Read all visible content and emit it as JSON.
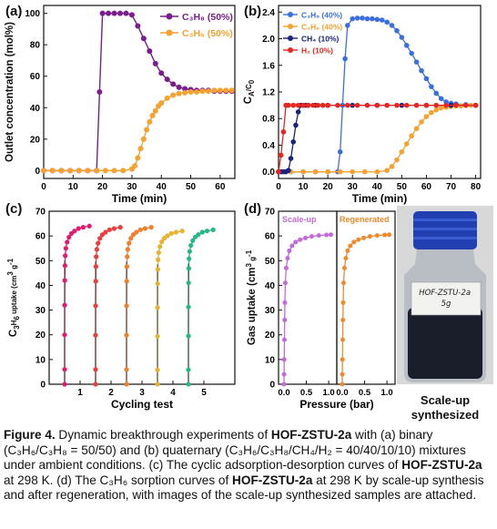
{
  "panels": {
    "a": {
      "label": "(a)"
    },
    "b": {
      "label": "(b)"
    },
    "c": {
      "label": "(c)"
    },
    "d": {
      "label": "(d)"
    }
  },
  "photo": {
    "bottle_label": "HOF-ZSTU-2a\n5g",
    "caption_line1": "Scale-up",
    "caption_line2": "synthesized"
  },
  "caption": {
    "fig": "Figure 4.",
    "t1": " Dynamic breakthrough experiments of ",
    "b1": "HOF-ZSTU-2a",
    "t2": " with (a) binary (C₃H₆/C₃H₈ = 50/50) and (b) quaternary (C₃H₆/C₃H₈/CH₄/H₂ = 40/40/10/10) mixtures under ambient conditions. (c) The cyclic adsorption-desorption curves of ",
    "b2": "HOF-ZSTU-2a",
    "t3": " at 298 K. (d) The C₃H₆ sorption curves of ",
    "b3": "HOF-ZSTU-2a",
    "t4": " at 298 K by scale-up synthesis and after regeneration, with images of the scale-up synthesized samples are attached."
  },
  "chart_data": [
    {
      "id": "a",
      "type": "line",
      "xlabel": "Time (min)",
      "ylabel": "Outlet concentration (mol%)",
      "xlim": [
        0,
        65
      ],
      "ylim": [
        -5,
        105
      ],
      "xticks": [
        0,
        10,
        20,
        30,
        40,
        50,
        60
      ],
      "yticks": [
        0,
        20,
        40,
        60,
        80,
        100
      ],
      "legend": "top-right",
      "series": [
        {
          "name": "C₃H₈ (50%)",
          "color": "#7b1d8e",
          "x": [
            0,
            3,
            6,
            9,
            12,
            15,
            18,
            19,
            20,
            22,
            24,
            26,
            28,
            30,
            32,
            34,
            36,
            38,
            40,
            42,
            44,
            46,
            48,
            50,
            52,
            54,
            56,
            58,
            60,
            62,
            64
          ],
          "y": [
            0,
            0,
            0,
            0,
            0,
            0,
            0,
            50,
            100,
            100,
            100,
            100,
            100,
            99,
            92,
            84,
            76,
            68,
            62,
            58,
            55,
            53,
            52,
            51.5,
            51,
            51,
            51,
            50.5,
            50.5,
            50.5,
            50.5
          ]
        },
        {
          "name": "C₃H₆ (50%)",
          "color": "#f5a231",
          "x": [
            0,
            3,
            6,
            9,
            12,
            15,
            18,
            21,
            24,
            27,
            30,
            31,
            32,
            33,
            34,
            35,
            36,
            37,
            38,
            39,
            40,
            42,
            44,
            46,
            48,
            50,
            52,
            54,
            56,
            58,
            60,
            62,
            64
          ],
          "y": [
            0,
            0,
            0,
            0,
            0,
            0,
            0,
            0,
            0,
            0,
            1,
            3,
            8,
            14,
            20,
            26,
            31,
            35,
            38,
            41,
            43,
            46,
            48,
            49,
            49.5,
            50,
            50,
            50.5,
            50.5,
            51,
            51,
            51,
            51
          ]
        }
      ]
    },
    {
      "id": "b",
      "type": "line",
      "xlabel": "Time (min)",
      "ylabel": "CA/C0",
      "xlim": [
        0,
        82
      ],
      "ylim": [
        -0.1,
        2.5
      ],
      "xticks": [
        0,
        10,
        20,
        30,
        40,
        50,
        60,
        70,
        80
      ],
      "yticks": [
        "0.0",
        "0.4",
        "0.8",
        "1.2",
        "1.6",
        "2.0",
        "2.4"
      ],
      "legend": "top-left",
      "series": [
        {
          "name": "C₃H₆ (40%)",
          "color": "#3b6fe0",
          "x": [
            0,
            5,
            10,
            15,
            20,
            24,
            25,
            26,
            27,
            28,
            30,
            32,
            34,
            36,
            38,
            40,
            42,
            44,
            46,
            48,
            50,
            52,
            54,
            56,
            58,
            60,
            62,
            64,
            66,
            68,
            70,
            72,
            76,
            80
          ],
          "y": [
            0,
            0,
            0,
            0,
            0,
            0,
            0.3,
            1.0,
            1.7,
            2.2,
            2.3,
            2.31,
            2.31,
            2.3,
            2.3,
            2.29,
            2.28,
            2.25,
            2.2,
            2.12,
            2.02,
            1.9,
            1.78,
            1.65,
            1.52,
            1.4,
            1.28,
            1.18,
            1.1,
            1.05,
            1.03,
            1.02,
            1.01,
            1.0
          ]
        },
        {
          "name": "C₃H₈ (40%)",
          "color": "#f5a231",
          "x": [
            0,
            5,
            10,
            15,
            20,
            25,
            30,
            35,
            40,
            44,
            46,
            48,
            50,
            52,
            54,
            56,
            58,
            60,
            62,
            64,
            66,
            68,
            70,
            72,
            74,
            76,
            78,
            80
          ],
          "y": [
            0,
            0,
            0,
            0,
            0,
            0,
            0,
            0,
            0,
            0.02,
            0.08,
            0.18,
            0.3,
            0.42,
            0.54,
            0.65,
            0.75,
            0.83,
            0.89,
            0.93,
            0.96,
            0.97,
            0.98,
            0.99,
            0.99,
            1.0,
            1.0,
            1.0
          ]
        },
        {
          "name": "CH₄ (10%)",
          "color": "#1a237e",
          "x": [
            0,
            1,
            2,
            3,
            4,
            5,
            6,
            7,
            8,
            9,
            10,
            11,
            12,
            15,
            20,
            30,
            40,
            50,
            60,
            70,
            80
          ],
          "y": [
            0,
            0,
            0,
            0,
            0.02,
            0.2,
            0.45,
            0.7,
            0.9,
            1.0,
            1.0,
            1.0,
            1.0,
            1.0,
            1.0,
            1.0,
            1.0,
            1.0,
            1.0,
            1.0,
            1.0
          ]
        },
        {
          "name": "H₂ (10%)",
          "color": "#e8261f",
          "x": [
            0,
            1,
            2,
            3,
            4,
            6,
            8,
            10,
            12,
            14,
            16,
            18,
            20,
            24,
            28,
            32,
            36,
            40,
            44,
            48,
            52,
            56,
            60,
            64,
            68,
            72,
            76,
            80
          ],
          "y": [
            0,
            0.25,
            0.6,
            1.0,
            1.0,
            1.0,
            1.0,
            1.0,
            1.0,
            1.0,
            1.0,
            1.0,
            1.0,
            1.0,
            1.0,
            1.0,
            1.0,
            1.0,
            1.0,
            1.0,
            1.0,
            1.0,
            1.0,
            1.0,
            1.0,
            1.0,
            1.0,
            1.0
          ]
        }
      ]
    },
    {
      "id": "c",
      "type": "line",
      "xlabel": "Cycling test",
      "ylabel": "C3H6 uptake (cm3 g-1)",
      "xlim": [
        0,
        6
      ],
      "ylim": [
        0,
        70
      ],
      "xticks": [
        1,
        2,
        3,
        4,
        5
      ],
      "yticks": [
        0,
        10,
        20,
        30,
        40,
        50,
        60,
        70
      ],
      "cycles": [
        {
          "start": 0.5,
          "color": "#e5196f",
          "plateau": 64
        },
        {
          "start": 1.5,
          "color": "#ec3c3c",
          "plateau": 63.5
        },
        {
          "start": 2.5,
          "color": "#f07f2e",
          "plateau": 63.5
        },
        {
          "start": 3.5,
          "color": "#eab22c",
          "plateau": 62
        },
        {
          "start": 4.5,
          "color": "#27b888",
          "plateau": 62.5
        }
      ]
    },
    {
      "id": "d",
      "type": "line",
      "xlabel": "Pressure (bar)",
      "ylabel": "Gas uptake (cm3 g-1)",
      "ylim": [
        0,
        70
      ],
      "yticks": [
        0,
        10,
        20,
        30,
        40,
        50,
        60,
        70
      ],
      "xticks_left": [
        "0.0",
        "0.5",
        "1.0"
      ],
      "xticks_right": [
        "0.0",
        "0.5",
        "1.0"
      ],
      "series": [
        {
          "name": "Scale-up",
          "color": "#c36adb",
          "plateau": 60.5
        },
        {
          "name": "Regenerated",
          "color": "#f08a2c",
          "plateau": 60.5
        }
      ]
    }
  ]
}
